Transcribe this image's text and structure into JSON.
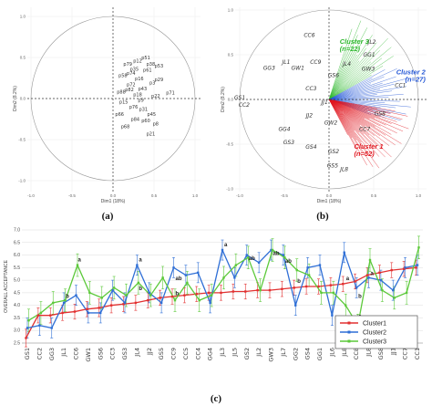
{
  "panel_labels": {
    "a": "(a)",
    "b": "(b)",
    "c": "(c)"
  },
  "chart_data": [
    {
      "type": "scatter",
      "panel": "a",
      "xlabel": "Dim1 (18%)",
      "ylabel": "Dim2 (8.2%)",
      "xlim": [
        -1.0,
        1.0
      ],
      "ylim": [
        -1.0,
        1.0
      ],
      "xticks": [
        "-1.0",
        "-0.5",
        "0.0",
        "0.5",
        "1.0"
      ],
      "yticks": [
        "1.0",
        "0.5",
        "0.0",
        "-0.5",
        "-1.0"
      ],
      "points": [
        {
          "label": "p79",
          "x": 0.18,
          "y": 0.4
        },
        {
          "label": "p51",
          "x": 0.4,
          "y": 0.48
        },
        {
          "label": "p12",
          "x": 0.3,
          "y": 0.44
        },
        {
          "label": "p38",
          "x": 0.46,
          "y": 0.4
        },
        {
          "label": "p53",
          "x": 0.56,
          "y": 0.38
        },
        {
          "label": "p35",
          "x": 0.26,
          "y": 0.34
        },
        {
          "label": "p61",
          "x": 0.42,
          "y": 0.33
        },
        {
          "label": "p58",
          "x": 0.12,
          "y": 0.26
        },
        {
          "label": "p16",
          "x": 0.32,
          "y": 0.22
        },
        {
          "label": "p72",
          "x": 0.22,
          "y": 0.15
        },
        {
          "label": "p3",
          "x": 0.48,
          "y": 0.17
        },
        {
          "label": "p71",
          "x": 0.7,
          "y": 0.05
        },
        {
          "label": "p88",
          "x": 0.1,
          "y": 0.06
        },
        {
          "label": "p18",
          "x": 0.3,
          "y": 0.03
        },
        {
          "label": "p22",
          "x": 0.52,
          "y": 0.01
        },
        {
          "label": "p15",
          "x": 0.13,
          "y": -0.06
        },
        {
          "label": "p76",
          "x": 0.25,
          "y": -0.12
        },
        {
          "label": "p31",
          "x": 0.37,
          "y": -0.15
        },
        {
          "label": "p45",
          "x": 0.47,
          "y": -0.21
        },
        {
          "label": "p66",
          "x": 0.08,
          "y": -0.21
        },
        {
          "label": "p84",
          "x": 0.27,
          "y": -0.27
        },
        {
          "label": "p60",
          "x": 0.4,
          "y": -0.29
        },
        {
          "label": "p8",
          "x": 0.52,
          "y": -0.33
        },
        {
          "label": "p68",
          "x": 0.15,
          "y": -0.36
        },
        {
          "label": "p21",
          "x": 0.46,
          "y": -0.45
        },
        {
          "label": "p82",
          "x": 0.2,
          "y": 0.09
        },
        {
          "label": "p43",
          "x": 0.36,
          "y": 0.1
        },
        {
          "label": "p29",
          "x": 0.56,
          "y": 0.21
        },
        {
          "label": "p9",
          "x": 0.34,
          "y": -0.04
        },
        {
          "label": "p74",
          "x": 0.22,
          "y": 0.29
        }
      ]
    },
    {
      "type": "scatter",
      "panel": "b",
      "xlabel": "Dim1 (18%)",
      "ylabel": "Dim2 (8.2%)",
      "xlim": [
        -1.0,
        1.0
      ],
      "ylim": [
        -1.0,
        1.0
      ],
      "xticks": [
        "-1.0",
        "-0.5",
        "0.0",
        "0.5",
        "1.0"
      ],
      "yticks": [
        "1.0",
        "0.5",
        "0.0",
        "-0.5",
        "-1.0"
      ],
      "products": [
        {
          "label": "CC6",
          "x": -0.22,
          "y": 0.7
        },
        {
          "label": "CC9",
          "x": -0.15,
          "y": 0.4
        },
        {
          "label": "JL1",
          "x": -0.48,
          "y": 0.4
        },
        {
          "label": "GG3",
          "x": -0.67,
          "y": 0.33
        },
        {
          "label": "GW1",
          "x": -0.35,
          "y": 0.33
        },
        {
          "label": "CC3",
          "x": -0.2,
          "y": 0.1
        },
        {
          "label": "JJ1",
          "x": -0.05,
          "y": -0.05
        },
        {
          "label": "GS1",
          "x": -1.0,
          "y": 0.0
        },
        {
          "label": "CC2",
          "x": -0.95,
          "y": -0.08
        },
        {
          "label": "JJ2",
          "x": -0.22,
          "y": -0.2
        },
        {
          "label": "GG4",
          "x": -0.5,
          "y": -0.35
        },
        {
          "label": "GS3",
          "x": -0.45,
          "y": -0.5
        },
        {
          "label": "GS4",
          "x": -0.2,
          "y": -0.55
        },
        {
          "label": "GS2",
          "x": 0.05,
          "y": -0.6
        },
        {
          "label": "GS5",
          "x": 0.04,
          "y": -0.76
        },
        {
          "label": "JL8",
          "x": 0.17,
          "y": -0.8
        },
        {
          "label": "GW2",
          "x": 0.02,
          "y": -0.28
        },
        {
          "label": "JL2",
          "x": 0.48,
          "y": 0.62
        },
        {
          "label": "GG1",
          "x": 0.45,
          "y": 0.48
        },
        {
          "label": "GW3",
          "x": 0.44,
          "y": 0.32
        },
        {
          "label": "JL4",
          "x": 0.2,
          "y": 0.38
        },
        {
          "label": "GS6",
          "x": 0.05,
          "y": 0.25
        },
        {
          "label": "CC1",
          "x": 0.8,
          "y": 0.14
        },
        {
          "label": "GS8",
          "x": 0.57,
          "y": -0.18
        },
        {
          "label": "CC7",
          "x": 0.4,
          "y": -0.35
        }
      ],
      "clusters": [
        {
          "name": "Cluster 3",
          "n": "(n=22)",
          "color": "#2db82d"
        },
        {
          "name": "Cluster 2",
          "n": "(n=27)",
          "color": "#2457d6"
        },
        {
          "name": "Cluster 1",
          "n": "(n=52)",
          "color": "#e0161f"
        }
      ]
    },
    {
      "type": "line",
      "panel": "c",
      "ylabel": "OVERALL ACCEPTANCE",
      "ylim": [
        2.5,
        7.0
      ],
      "yticks": [
        7.0,
        6.5,
        6.0,
        5.5,
        5.0,
        4.5,
        4.0,
        3.5,
        3.0,
        2.5
      ],
      "categories": [
        "GS1",
        "CC2",
        "GG3",
        "JL1",
        "CC6",
        "GW1",
        "GS6",
        "CC3",
        "GS3",
        "JL4",
        "JJ2",
        "GS5",
        "CC9",
        "CC5",
        "CC4",
        "GG4",
        "JL3",
        "JL5",
        "GS2",
        "JL2",
        "GW3",
        "JL7",
        "GG2",
        "GS4",
        "GG1",
        "JL6",
        "JL8",
        "CC8",
        "JL8",
        "GS8",
        "JJ1",
        "CC7",
        "CC1"
      ],
      "series": [
        {
          "name": "Cluster1",
          "color": "#e23030",
          "values": [
            2.7,
            3.6,
            3.6,
            3.7,
            3.75,
            3.85,
            3.9,
            4.0,
            4.05,
            4.1,
            4.2,
            4.3,
            4.35,
            4.4,
            4.45,
            4.5,
            4.5,
            4.55,
            4.55,
            4.6,
            4.6,
            4.65,
            4.7,
            4.75,
            4.75,
            4.8,
            4.85,
            4.95,
            5.2,
            5.3,
            5.4,
            5.45,
            5.5
          ],
          "errors": [
            0.35,
            0.3,
            0.3,
            0.3,
            0.3,
            0.3,
            0.35,
            0.3,
            0.3,
            0.3,
            0.3,
            0.3,
            0.3,
            0.3,
            0.3,
            0.3,
            0.3,
            0.3,
            0.3,
            0.3,
            0.3,
            0.3,
            0.3,
            0.3,
            0.3,
            0.3,
            0.3,
            0.3,
            0.3,
            0.3,
            0.3,
            0.3,
            0.3
          ]
        },
        {
          "name": "Cluster2",
          "color": "#2f6fd6",
          "values": [
            3.1,
            3.2,
            3.1,
            4.1,
            4.4,
            3.7,
            3.7,
            4.6,
            4.1,
            5.6,
            4.5,
            4.1,
            5.5,
            5.2,
            5.3,
            4.1,
            6.2,
            5.1,
            6.0,
            5.7,
            6.2,
            6.0,
            4.0,
            5.5,
            5.6,
            3.6,
            6.1,
            4.7,
            5.1,
            5.0,
            4.6,
            5.5,
            5.6
          ],
          "errors": [
            0.4,
            0.4,
            0.4,
            0.4,
            0.4,
            0.4,
            0.4,
            0.4,
            0.4,
            0.4,
            0.4,
            0.4,
            0.4,
            0.4,
            0.4,
            0.4,
            0.4,
            0.4,
            0.4,
            0.4,
            0.4,
            0.4,
            0.4,
            0.4,
            0.4,
            0.4,
            0.4,
            0.4,
            0.4,
            0.4,
            0.4,
            0.4,
            0.4
          ]
        },
        {
          "name": "Cluster3",
          "color": "#5cc93a",
          "values": [
            3.4,
            3.7,
            4.1,
            4.2,
            5.6,
            4.5,
            4.3,
            4.7,
            4.4,
            4.9,
            4.4,
            5.1,
            4.2,
            4.9,
            4.2,
            4.4,
            5.1,
            5.6,
            5.9,
            4.6,
            6.2,
            5.9,
            5.4,
            5.2,
            4.5,
            4.5,
            4.0,
            3.2,
            5.8,
            4.6,
            4.3,
            4.5,
            6.3
          ],
          "errors": [
            0.45,
            0.45,
            0.45,
            0.45,
            0.45,
            0.45,
            0.45,
            0.45,
            0.45,
            0.45,
            0.45,
            0.45,
            0.45,
            0.45,
            0.45,
            0.45,
            0.45,
            0.45,
            0.45,
            0.45,
            0.45,
            0.45,
            0.45,
            0.45,
            0.45,
            0.45,
            0.45,
            0.45,
            0.45,
            0.45,
            0.45,
            0.45,
            0.45
          ]
        }
      ],
      "significance_letters": [
        {
          "index": 3,
          "text": "b",
          "value": 4.3
        },
        {
          "index": 4,
          "text": "a",
          "value": 5.75
        },
        {
          "index": 9,
          "text": "a",
          "value": 5.75
        },
        {
          "index": 9,
          "text": "b",
          "value": 4.6
        },
        {
          "index": 12,
          "text": "ab",
          "value": 5.0
        },
        {
          "index": 12,
          "text": "b",
          "value": 4.4
        },
        {
          "index": 16,
          "text": "a",
          "value": 6.35
        },
        {
          "index": 18,
          "text": "ab",
          "value": 5.8
        },
        {
          "index": 20,
          "text": "ab",
          "value": 6.0
        },
        {
          "index": 21,
          "text": "ab",
          "value": 5.7
        },
        {
          "index": 22,
          "text": "b",
          "value": 4.9
        },
        {
          "index": 26,
          "text": "a",
          "value": 5.0
        },
        {
          "index": 27,
          "text": "b",
          "value": 4.3
        },
        {
          "index": 27,
          "text": "c",
          "value": 3.5
        },
        {
          "index": 28,
          "text": "a",
          "value": 5.2
        }
      ],
      "legend": {
        "position": "bottom-right"
      }
    }
  ]
}
